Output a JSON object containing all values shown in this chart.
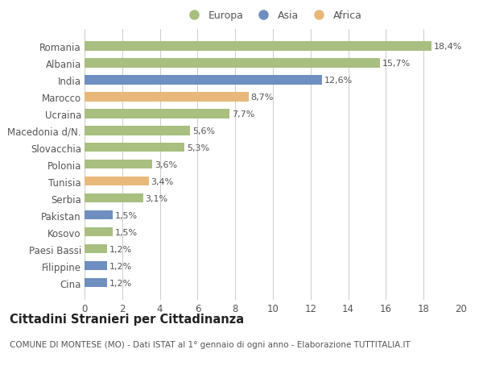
{
  "categories": [
    "Cina",
    "Filippine",
    "Paesi Bassi",
    "Kosovo",
    "Pakistan",
    "Serbia",
    "Tunisia",
    "Polonia",
    "Slovacchia",
    "Macedonia d/N.",
    "Ucraina",
    "Marocco",
    "India",
    "Albania",
    "Romania"
  ],
  "values": [
    1.2,
    1.2,
    1.2,
    1.5,
    1.5,
    3.1,
    3.4,
    3.6,
    5.3,
    5.6,
    7.7,
    8.7,
    12.6,
    15.7,
    18.4
  ],
  "colors": [
    "#6e8fbf",
    "#6e8fbf",
    "#a8bf80",
    "#a8bf80",
    "#6e8fbf",
    "#a8bf80",
    "#e8b87a",
    "#a8bf80",
    "#a8bf80",
    "#a8bf80",
    "#a8bf80",
    "#e8b87a",
    "#6e8fbf",
    "#a8bf80",
    "#a8bf80"
  ],
  "labels": [
    "1,2%",
    "1,2%",
    "1,2%",
    "1,5%",
    "1,5%",
    "3,1%",
    "3,4%",
    "3,6%",
    "5,3%",
    "5,6%",
    "7,7%",
    "8,7%",
    "12,6%",
    "15,7%",
    "18,4%"
  ],
  "legend_labels": [
    "Europa",
    "Asia",
    "Africa"
  ],
  "legend_colors": [
    "#a8bf80",
    "#6e8fbf",
    "#e8b87a"
  ],
  "title": "Cittadini Stranieri per Cittadinanza",
  "subtitle": "COMUNE DI MONTESE (MO) - Dati ISTAT al 1° gennaio di ogni anno - Elaborazione TUTTITALIA.IT",
  "xlim": [
    0,
    20
  ],
  "xticks": [
    0,
    2,
    4,
    6,
    8,
    10,
    12,
    14,
    16,
    18,
    20
  ],
  "background_color": "#ffffff",
  "grid_color": "#cccccc",
  "bar_height": 0.55,
  "label_fontsize": 8,
  "tick_label_fontsize": 8.5,
  "title_fontsize": 10.5,
  "subtitle_fontsize": 7.5
}
